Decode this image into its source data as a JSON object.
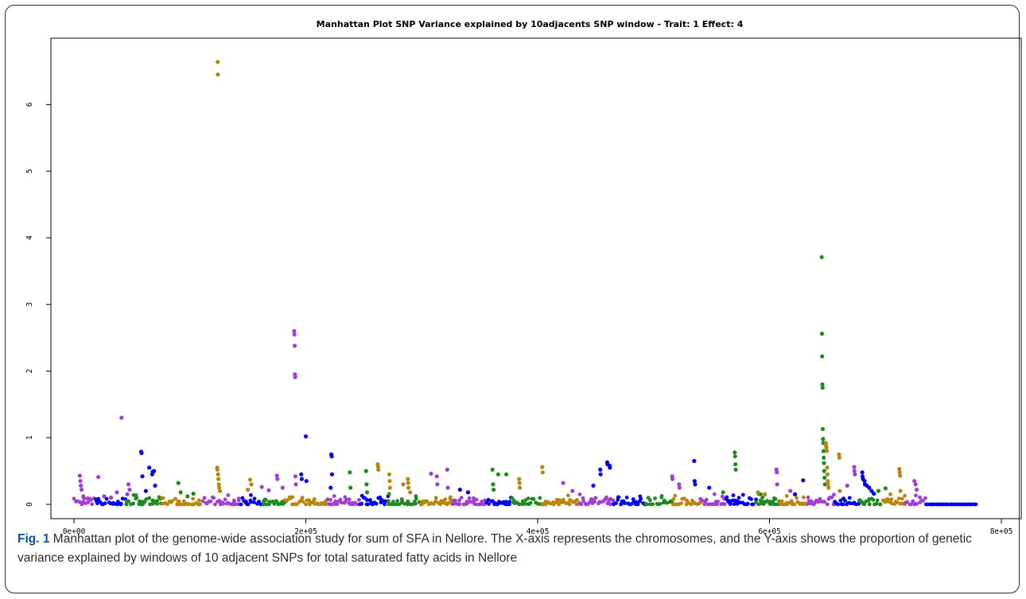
{
  "chart_data": {
    "type": "scatter",
    "title": "Manhattan Plot SNP Variance explained by 10adjacents SNP window - Trait: 1 Effect: 4",
    "xlabel": "",
    "ylabel": "",
    "xlim": [
      0,
      800000
    ],
    "ylim": [
      0,
      7
    ],
    "x_ticks": [
      {
        "value": 0,
        "label": "0e+00"
      },
      {
        "value": 200000,
        "label": "2e+05"
      },
      {
        "value": 400000,
        "label": "4e+05"
      },
      {
        "value": 600000,
        "label": "6e+05"
      },
      {
        "value": 800000,
        "label": "8e+05"
      }
    ],
    "y_ticks": [
      {
        "value": 0,
        "label": "0"
      },
      {
        "value": 1,
        "label": "1"
      },
      {
        "value": 2,
        "label": "2"
      },
      {
        "value": 3,
        "label": "3"
      },
      {
        "value": 4,
        "label": "4"
      },
      {
        "value": 5,
        "label": "5"
      },
      {
        "value": 6,
        "label": "6"
      }
    ],
    "colors": [
      "#a23ed0",
      "#0000ee",
      "#1f8a1f",
      "#b8860b"
    ],
    "chromosome_bounds": [
      [
        0,
        18000
      ],
      [
        18000,
        44000
      ],
      [
        44000,
        75000
      ],
      [
        75000,
        110000
      ],
      [
        110000,
        143000
      ],
      [
        143000,
        162000
      ],
      [
        162000,
        182000
      ],
      [
        182000,
        218000
      ],
      [
        218000,
        246000
      ],
      [
        246000,
        270000
      ],
      [
        270000,
        298000
      ],
      [
        298000,
        327000
      ],
      [
        327000,
        355000
      ],
      [
        355000,
        377000
      ],
      [
        377000,
        404000
      ],
      [
        404000,
        436000
      ],
      [
        436000,
        465000
      ],
      [
        465000,
        492000
      ],
      [
        492000,
        516000
      ],
      [
        516000,
        540000
      ],
      [
        540000,
        562000
      ],
      [
        562000,
        588000
      ],
      [
        588000,
        608000
      ],
      [
        608000,
        632000
      ],
      [
        632000,
        656000
      ],
      [
        656000,
        676000
      ],
      [
        676000,
        697000
      ],
      [
        697000,
        717000
      ],
      [
        717000,
        735000
      ],
      [
        735000,
        778000
      ]
    ],
    "points": [
      {
        "x": 5000,
        "y": 0.43,
        "chrom": 0
      },
      {
        "x": 5500,
        "y": 0.35,
        "chrom": 0
      },
      {
        "x": 6000,
        "y": 0.28,
        "chrom": 0
      },
      {
        "x": 6500,
        "y": 0.22,
        "chrom": 0
      },
      {
        "x": 8000,
        "y": 0.12,
        "chrom": 0
      },
      {
        "x": 12000,
        "y": 0.09,
        "chrom": 0
      },
      {
        "x": 21000,
        "y": 0.41,
        "chrom": 0
      },
      {
        "x": 26000,
        "y": 0.12,
        "chrom": 0
      },
      {
        "x": 32000,
        "y": 0.1,
        "chrom": 0
      },
      {
        "x": 41000,
        "y": 1.3,
        "chrom": 0
      },
      {
        "x": 47000,
        "y": 0.3,
        "chrom": 0
      },
      {
        "x": 48000,
        "y": 0.22,
        "chrom": 0
      },
      {
        "x": 46000,
        "y": 0.15,
        "chrom": 0
      },
      {
        "x": 37000,
        "y": 0.18,
        "chrom": 0
      },
      {
        "x": 58000,
        "y": 0.79,
        "chrom": 1
      },
      {
        "x": 58300,
        "y": 0.77,
        "chrom": 1
      },
      {
        "x": 59000,
        "y": 0.42,
        "chrom": 1
      },
      {
        "x": 65000,
        "y": 0.55,
        "chrom": 1
      },
      {
        "x": 68000,
        "y": 0.49,
        "chrom": 1
      },
      {
        "x": 67500,
        "y": 0.45,
        "chrom": 1
      },
      {
        "x": 69000,
        "y": 0.5,
        "chrom": 1
      },
      {
        "x": 70000,
        "y": 0.28,
        "chrom": 1
      },
      {
        "x": 62000,
        "y": 0.2,
        "chrom": 1
      },
      {
        "x": 90000,
        "y": 0.32,
        "chrom": 2
      },
      {
        "x": 92000,
        "y": 0.18,
        "chrom": 2
      },
      {
        "x": 103000,
        "y": 0.16,
        "chrom": 2
      },
      {
        "x": 98000,
        "y": 0.12,
        "chrom": 2
      },
      {
        "x": 124000,
        "y": 6.64,
        "chrom": 3
      },
      {
        "x": 124100,
        "y": 6.45,
        "chrom": 3
      },
      {
        "x": 123500,
        "y": 0.55,
        "chrom": 3
      },
      {
        "x": 123800,
        "y": 0.52,
        "chrom": 3
      },
      {
        "x": 124300,
        "y": 0.45,
        "chrom": 3
      },
      {
        "x": 124600,
        "y": 0.38,
        "chrom": 3
      },
      {
        "x": 125000,
        "y": 0.3,
        "chrom": 3
      },
      {
        "x": 125300,
        "y": 0.25,
        "chrom": 3
      },
      {
        "x": 126000,
        "y": 0.2,
        "chrom": 3
      },
      {
        "x": 152000,
        "y": 0.37,
        "chrom": 3
      },
      {
        "x": 153000,
        "y": 0.3,
        "chrom": 3
      },
      {
        "x": 150000,
        "y": 0.22,
        "chrom": 3
      },
      {
        "x": 162000,
        "y": 0.26,
        "chrom": 0
      },
      {
        "x": 168000,
        "y": 0.21,
        "chrom": 0
      },
      {
        "x": 175000,
        "y": 0.43,
        "chrom": 0
      },
      {
        "x": 175500,
        "y": 0.38,
        "chrom": 0
      },
      {
        "x": 180000,
        "y": 0.25,
        "chrom": 0
      },
      {
        "x": 190000,
        "y": 2.6,
        "chrom": 0
      },
      {
        "x": 190200,
        "y": 2.55,
        "chrom": 0
      },
      {
        "x": 190400,
        "y": 2.38,
        "chrom": 0
      },
      {
        "x": 190600,
        "y": 1.95,
        "chrom": 0
      },
      {
        "x": 190800,
        "y": 1.91,
        "chrom": 0
      },
      {
        "x": 191000,
        "y": 0.42,
        "chrom": 0
      },
      {
        "x": 191400,
        "y": 0.3,
        "chrom": 0
      },
      {
        "x": 196000,
        "y": 0.45,
        "chrom": 1
      },
      {
        "x": 196500,
        "y": 0.38,
        "chrom": 1
      },
      {
        "x": 200000,
        "y": 1.02,
        "chrom": 1
      },
      {
        "x": 200500,
        "y": 0.35,
        "chrom": 1
      },
      {
        "x": 222000,
        "y": 0.75,
        "chrom": 1
      },
      {
        "x": 222300,
        "y": 0.72,
        "chrom": 1
      },
      {
        "x": 222600,
        "y": 0.45,
        "chrom": 1
      },
      {
        "x": 221500,
        "y": 0.25,
        "chrom": 1
      },
      {
        "x": 238000,
        "y": 0.48,
        "chrom": 2
      },
      {
        "x": 238500,
        "y": 0.25,
        "chrom": 2
      },
      {
        "x": 252000,
        "y": 0.5,
        "chrom": 2
      },
      {
        "x": 252400,
        "y": 0.3,
        "chrom": 2
      },
      {
        "x": 252800,
        "y": 0.18,
        "chrom": 2
      },
      {
        "x": 262000,
        "y": 0.6,
        "chrom": 3
      },
      {
        "x": 262300,
        "y": 0.57,
        "chrom": 3
      },
      {
        "x": 262600,
        "y": 0.52,
        "chrom": 3
      },
      {
        "x": 272000,
        "y": 0.45,
        "chrom": 3
      },
      {
        "x": 272300,
        "y": 0.35,
        "chrom": 3
      },
      {
        "x": 272600,
        "y": 0.25,
        "chrom": 3
      },
      {
        "x": 284000,
        "y": 0.3,
        "chrom": 3
      },
      {
        "x": 288000,
        "y": 0.38,
        "chrom": 3
      },
      {
        "x": 288300,
        "y": 0.32,
        "chrom": 3
      },
      {
        "x": 288600,
        "y": 0.25,
        "chrom": 3
      },
      {
        "x": 290000,
        "y": 0.18,
        "chrom": 3
      },
      {
        "x": 308000,
        "y": 0.46,
        "chrom": 0
      },
      {
        "x": 313000,
        "y": 0.42,
        "chrom": 0
      },
      {
        "x": 313500,
        "y": 0.3,
        "chrom": 0
      },
      {
        "x": 322000,
        "y": 0.52,
        "chrom": 0
      },
      {
        "x": 322500,
        "y": 0.25,
        "chrom": 0
      },
      {
        "x": 333000,
        "y": 0.22,
        "chrom": 1
      },
      {
        "x": 340000,
        "y": 0.18,
        "chrom": 1
      },
      {
        "x": 361000,
        "y": 0.52,
        "chrom": 2
      },
      {
        "x": 366000,
        "y": 0.45,
        "chrom": 2
      },
      {
        "x": 373000,
        "y": 0.45,
        "chrom": 2
      },
      {
        "x": 361500,
        "y": 0.3,
        "chrom": 2
      },
      {
        "x": 362000,
        "y": 0.22,
        "chrom": 2
      },
      {
        "x": 384000,
        "y": 0.38,
        "chrom": 3
      },
      {
        "x": 384300,
        "y": 0.32,
        "chrom": 3
      },
      {
        "x": 384600,
        "y": 0.25,
        "chrom": 3
      },
      {
        "x": 404000,
        "y": 0.56,
        "chrom": 3
      },
      {
        "x": 404300,
        "y": 0.48,
        "chrom": 3
      },
      {
        "x": 422000,
        "y": 0.32,
        "chrom": 0
      },
      {
        "x": 430000,
        "y": 0.2,
        "chrom": 0
      },
      {
        "x": 454000,
        "y": 0.52,
        "chrom": 1
      },
      {
        "x": 454300,
        "y": 0.45,
        "chrom": 1
      },
      {
        "x": 460000,
        "y": 0.63,
        "chrom": 1
      },
      {
        "x": 460300,
        "y": 0.6,
        "chrom": 1
      },
      {
        "x": 462000,
        "y": 0.58,
        "chrom": 1
      },
      {
        "x": 462300,
        "y": 0.55,
        "chrom": 1
      },
      {
        "x": 448000,
        "y": 0.28,
        "chrom": 1
      },
      {
        "x": 516000,
        "y": 0.42,
        "chrom": 0
      },
      {
        "x": 516300,
        "y": 0.38,
        "chrom": 0
      },
      {
        "x": 522000,
        "y": 0.3,
        "chrom": 0
      },
      {
        "x": 522300,
        "y": 0.25,
        "chrom": 0
      },
      {
        "x": 535000,
        "y": 0.65,
        "chrom": 1
      },
      {
        "x": 535400,
        "y": 0.35,
        "chrom": 1
      },
      {
        "x": 535800,
        "y": 0.3,
        "chrom": 1
      },
      {
        "x": 548000,
        "y": 0.25,
        "chrom": 1
      },
      {
        "x": 570000,
        "y": 0.78,
        "chrom": 2
      },
      {
        "x": 570300,
        "y": 0.72,
        "chrom": 2
      },
      {
        "x": 570600,
        "y": 0.6,
        "chrom": 2
      },
      {
        "x": 570900,
        "y": 0.52,
        "chrom": 2
      },
      {
        "x": 560000,
        "y": 0.18,
        "chrom": 2
      },
      {
        "x": 590000,
        "y": 0.18,
        "chrom": 3
      },
      {
        "x": 596000,
        "y": 0.15,
        "chrom": 3
      },
      {
        "x": 606000,
        "y": 0.52,
        "chrom": 0
      },
      {
        "x": 606300,
        "y": 0.48,
        "chrom": 0
      },
      {
        "x": 606600,
        "y": 0.3,
        "chrom": 0
      },
      {
        "x": 618000,
        "y": 0.2,
        "chrom": 0
      },
      {
        "x": 629000,
        "y": 0.36,
        "chrom": 1
      },
      {
        "x": 622000,
        "y": 0.15,
        "chrom": 1
      },
      {
        "x": 645000,
        "y": 3.71,
        "chrom": 2
      },
      {
        "x": 645200,
        "y": 2.56,
        "chrom": 2
      },
      {
        "x": 645400,
        "y": 2.22,
        "chrom": 2
      },
      {
        "x": 645600,
        "y": 1.8,
        "chrom": 2
      },
      {
        "x": 645800,
        "y": 1.75,
        "chrom": 2
      },
      {
        "x": 646000,
        "y": 1.13,
        "chrom": 2
      },
      {
        "x": 646200,
        "y": 0.98,
        "chrom": 2
      },
      {
        "x": 646400,
        "y": 0.92,
        "chrom": 2
      },
      {
        "x": 646600,
        "y": 0.8,
        "chrom": 2
      },
      {
        "x": 646800,
        "y": 0.7,
        "chrom": 2
      },
      {
        "x": 647000,
        "y": 0.62,
        "chrom": 2
      },
      {
        "x": 647200,
        "y": 0.5,
        "chrom": 2
      },
      {
        "x": 647500,
        "y": 0.4,
        "chrom": 2
      },
      {
        "x": 647800,
        "y": 0.3,
        "chrom": 2
      },
      {
        "x": 648500,
        "y": 0.92,
        "chrom": 3
      },
      {
        "x": 648800,
        "y": 0.88,
        "chrom": 3
      },
      {
        "x": 649100,
        "y": 0.85,
        "chrom": 3
      },
      {
        "x": 649400,
        "y": 0.8,
        "chrom": 3
      },
      {
        "x": 649700,
        "y": 0.55,
        "chrom": 3
      },
      {
        "x": 650000,
        "y": 0.45,
        "chrom": 3
      },
      {
        "x": 650300,
        "y": 0.35,
        "chrom": 3
      },
      {
        "x": 650600,
        "y": 0.3,
        "chrom": 3
      },
      {
        "x": 651000,
        "y": 0.25,
        "chrom": 3
      },
      {
        "x": 660000,
        "y": 0.75,
        "chrom": 3
      },
      {
        "x": 660300,
        "y": 0.7,
        "chrom": 3
      },
      {
        "x": 660600,
        "y": 0.2,
        "chrom": 3
      },
      {
        "x": 667000,
        "y": 0.28,
        "chrom": 0
      },
      {
        "x": 673000,
        "y": 0.56,
        "chrom": 0
      },
      {
        "x": 673300,
        "y": 0.5,
        "chrom": 0
      },
      {
        "x": 673600,
        "y": 0.45,
        "chrom": 0
      },
      {
        "x": 680000,
        "y": 0.48,
        "chrom": 1
      },
      {
        "x": 680300,
        "y": 0.42,
        "chrom": 1
      },
      {
        "x": 680600,
        "y": 0.38,
        "chrom": 1
      },
      {
        "x": 682000,
        "y": 0.35,
        "chrom": 1
      },
      {
        "x": 682300,
        "y": 0.3,
        "chrom": 1
      },
      {
        "x": 684000,
        "y": 0.28,
        "chrom": 1
      },
      {
        "x": 686000,
        "y": 0.25,
        "chrom": 1
      },
      {
        "x": 688000,
        "y": 0.2,
        "chrom": 1
      },
      {
        "x": 690000,
        "y": 0.16,
        "chrom": 1
      },
      {
        "x": 694000,
        "y": 0.2,
        "chrom": 2
      },
      {
        "x": 700000,
        "y": 0.24,
        "chrom": 2
      },
      {
        "x": 712000,
        "y": 0.53,
        "chrom": 3
      },
      {
        "x": 712300,
        "y": 0.48,
        "chrom": 3
      },
      {
        "x": 712600,
        "y": 0.43,
        "chrom": 3
      },
      {
        "x": 712900,
        "y": 0.2,
        "chrom": 3
      },
      {
        "x": 725000,
        "y": 0.35,
        "chrom": 0
      },
      {
        "x": 726000,
        "y": 0.3,
        "chrom": 0
      },
      {
        "x": 727000,
        "y": 0.22,
        "chrom": 0
      }
    ]
  },
  "caption": {
    "label": "Fig. 1",
    "text": "Manhattan plot of the genome-wide association study for sum of SFA in Nellore. The X-axis represents the chromosomes, and the Y-axis shows the proportion of genetic variance explained by windows of 10 adjacent SNPs for total saturated fatty acids in Nellore"
  }
}
